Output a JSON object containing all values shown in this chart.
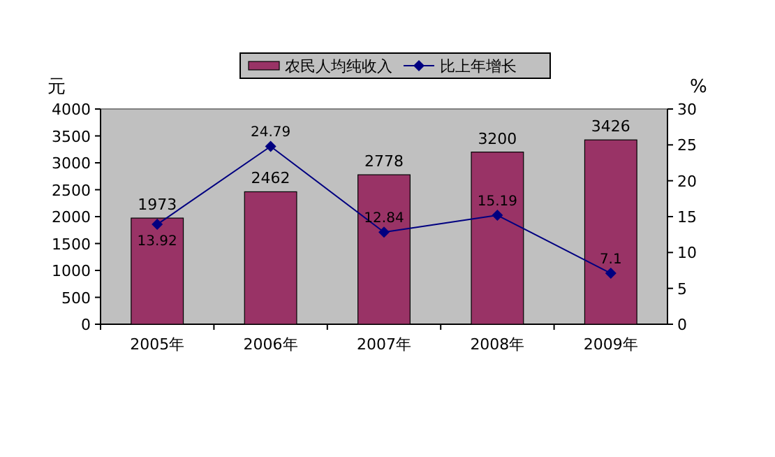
{
  "chart_data": {
    "type": "bar",
    "categories": [
      "2005年",
      "2006年",
      "2007年",
      "2008年",
      "2009年"
    ],
    "ylabel": "元",
    "y2label": "%",
    "ylim": [
      0,
      4000
    ],
    "yticks": [
      0,
      500,
      1000,
      1500,
      2000,
      2500,
      3000,
      3500,
      4000
    ],
    "y2lim": [
      0,
      30
    ],
    "y2ticks": [
      0,
      5,
      10,
      15,
      20,
      25,
      30
    ],
    "legend": "top",
    "data_labels": true,
    "series": [
      {
        "name": "农民人均纯收入",
        "color": "#993366",
        "values": [
          1973,
          2462,
          2778,
          3200,
          3426
        ]
      },
      {
        "name": "比上年增长",
        "type": "line",
        "axis": "y2",
        "color": "#000080",
        "marker": "diamond",
        "values": [
          13.92,
          24.79,
          12.84,
          15.19,
          7.1
        ]
      }
    ]
  }
}
